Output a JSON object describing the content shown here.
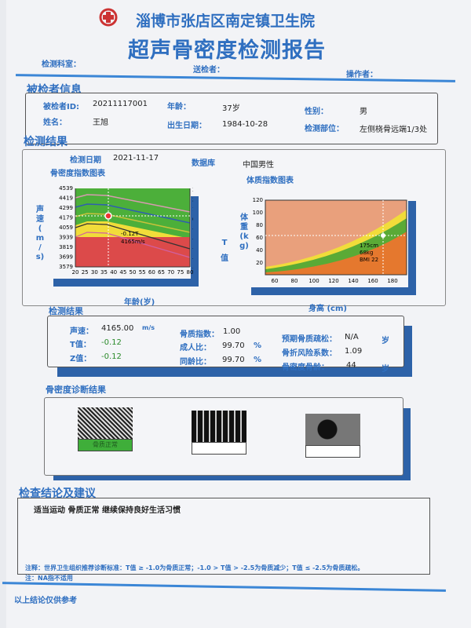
{
  "header": {
    "hospital": "淄博市张店区南定镇卫生院",
    "title": "超声骨密度检测报告",
    "dept_label": "检测科室：",
    "sender_label": "送检者：",
    "operator_label": "操作者："
  },
  "patient": {
    "section": "被检者信息",
    "id_label": "被检者ID:",
    "id": "20211117001",
    "age_label": "年龄：",
    "age": "37岁",
    "sex_label": "性别：",
    "sex": "男",
    "name_label": "姓名：",
    "name": "王旭",
    "dob_label": "出生日期：",
    "dob": "1984-10-28",
    "site_label": "检测部位：",
    "site": "左侧桡骨远端1/3处"
  },
  "exam": {
    "section": "检测结果",
    "date_label": "检测日期",
    "date": "2021-11-17",
    "db_label": "数据库",
    "db": "中国男性"
  },
  "chart_data": [
    {
      "type": "area",
      "title": "骨密度指数图表",
      "xlabel": "年龄(岁)",
      "ylabel": "声速(m/s)",
      "y2label": "T值",
      "x_ticks": [
        "20",
        "25",
        "30",
        "35",
        "40",
        "45",
        "50",
        "55",
        "60",
        "65",
        "70",
        "75",
        "80"
      ],
      "y_ticks": [
        "4539",
        "4419",
        "4299",
        "4179",
        "4059",
        "3939",
        "3819",
        "3699",
        "3579"
      ],
      "y2_ticks": [
        "3",
        "2",
        "1",
        "0",
        "-1",
        "-2",
        "-3",
        "-4",
        "-5"
      ],
      "point": {
        "age": 37,
        "speed": 4165,
        "t": -0.12
      },
      "annotation": [
        "-0.12T",
        "4165m/s"
      ],
      "colors": {
        "normal": "#4caf3a",
        "low": "#f1dc3a",
        "osteoporosis": "#dc4a4a"
      }
    },
    {
      "type": "area",
      "title": "体质指数图表",
      "xlabel": "身高 (cm)",
      "ylabel": "体重(kg)",
      "x_ticks": [
        "60",
        "80",
        "100",
        "120",
        "140",
        "160",
        "180"
      ],
      "y_ticks": [
        "120",
        "100",
        "80",
        "60",
        "40",
        "20"
      ],
      "point": {
        "height": 175,
        "weight": 68,
        "bmi": 22
      },
      "annotation": [
        "175cm",
        "68kg",
        "BMI 22"
      ]
    }
  ],
  "results": {
    "section": "检测结果",
    "speed_label": "声速：",
    "speed": "4165.00",
    "speed_unit": "m/s",
    "t_label": "T值：",
    "t": "-0.12",
    "z_label": "Z值：",
    "z": "-0.12",
    "bqi_label": "骨质指数：",
    "bqi": "1.00",
    "adult_label": "成人比：",
    "adult": "99.70",
    "pct": "%",
    "age_ratio_label": "同龄比：",
    "age_ratio": "99.70",
    "expected_label": "预期骨质疏松：",
    "expected": "N/A",
    "years": "岁",
    "fracture_label": "骨折风险系数：",
    "fracture": "1.09",
    "bone_age_label": "骨密度骨龄：",
    "bone_age": "44"
  },
  "diagnosis": {
    "section": "骨密度诊断结果",
    "labels": [
      "骨质正常",
      "",
      ""
    ],
    "selected_color": "#3fae3a"
  },
  "conclusion": {
    "section": "检查结论及建议",
    "text": "适当运动 骨质正常 继续保持良好生活习惯"
  },
  "notes": {
    "note1": "注释：世界卫生组织推荐诊断标准：T值 ≥ -1.0为骨质正常；-1.0 > T值 > -2.5为骨质减少；T值 ≤ -2.5为骨质疏松。",
    "note2": "注：NA指不适用"
  },
  "footer": {
    "text": "以上结论仅供参考"
  }
}
